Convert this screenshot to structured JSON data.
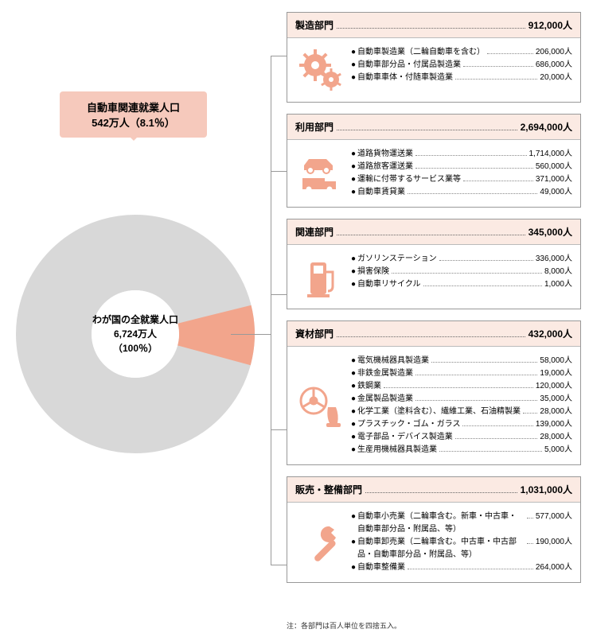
{
  "colors": {
    "accent": "#f2a58c",
    "accent_light": "#fbeae3",
    "callout_bg": "#f6c9bc",
    "donut_grey": "#d8d8d8",
    "border": "#999999",
    "text": "#222222"
  },
  "callout": {
    "line1": "自動車関連就業人口",
    "line2": "542万人（8.1％）"
  },
  "donut": {
    "line1": "わが国の全就業人口",
    "line2": "6,724万人",
    "line3": "（100％）",
    "slice_percent": 8.1,
    "outer_r": 150,
    "inner_r": 55
  },
  "categories": [
    {
      "id": "manufacturing",
      "title": "製造部門",
      "value": "912,000人",
      "icon": "gears",
      "items": [
        {
          "label": "自動車製造業（二輪自動車を含む）",
          "value": "206,000人"
        },
        {
          "label": "自動車部分品・付属品製造業",
          "value": "686,000人"
        },
        {
          "label": "自動車車体・付随車製造業",
          "value": "20,000人"
        }
      ]
    },
    {
      "id": "usage",
      "title": "利用部門",
      "value": "2,694,000人",
      "icon": "vehicles",
      "items": [
        {
          "label": "道路貨物運送業",
          "value": "1,714,000人"
        },
        {
          "label": "道路旅客運送業",
          "value": "560,000人"
        },
        {
          "label": "運輸に付帯するサービス業等",
          "value": "371,000人"
        },
        {
          "label": "自動車賃貸業",
          "value": "49,000人"
        }
      ]
    },
    {
      "id": "related",
      "title": "関連部門",
      "value": "345,000人",
      "icon": "pump",
      "items": [
        {
          "label": "ガソリンステーション",
          "value": "336,000人"
        },
        {
          "label": "損害保険",
          "value": "8,000人"
        },
        {
          "label": "自動車リサイクル",
          "value": "1,000人"
        }
      ]
    },
    {
      "id": "materials",
      "title": "資材部門",
      "value": "432,000人",
      "icon": "wheel-seat",
      "items": [
        {
          "label": "電気機械器具製造業",
          "value": "58,000人"
        },
        {
          "label": "非鉄金属製造業",
          "value": "19,000人"
        },
        {
          "label": "鉄鋼業",
          "value": "120,000人"
        },
        {
          "label": "金属製品製造業",
          "value": "35,000人"
        },
        {
          "label": "化学工業（塗料含む）、繊維工業、石油精製業",
          "value": "28,000人",
          "wrap": true
        },
        {
          "label": "プラスチック・ゴム・ガラス",
          "value": "139,000人"
        },
        {
          "label": "電子部品・デバイス製造業",
          "value": "28,000人"
        },
        {
          "label": "生産用機械器具製造業",
          "value": "5,000人"
        }
      ]
    },
    {
      "id": "sales",
      "title": "販売・整備部門",
      "value": "1,031,000人",
      "icon": "wrench",
      "items": [
        {
          "label": "自動車小売業（二輪車含む。新車・中古車・自動車部分品・附属品、等）",
          "value": "577,000人",
          "wrap": true
        },
        {
          "label": "自動車卸売業（二輪車含む。中古車・中古部品・自動車部分品・附属品、等）",
          "value": "190,000人",
          "wrap": true
        },
        {
          "label": "自動車整備業",
          "value": "264,000人"
        }
      ]
    }
  ],
  "footnote": "注：各部門は百人単位を四捨五入。"
}
